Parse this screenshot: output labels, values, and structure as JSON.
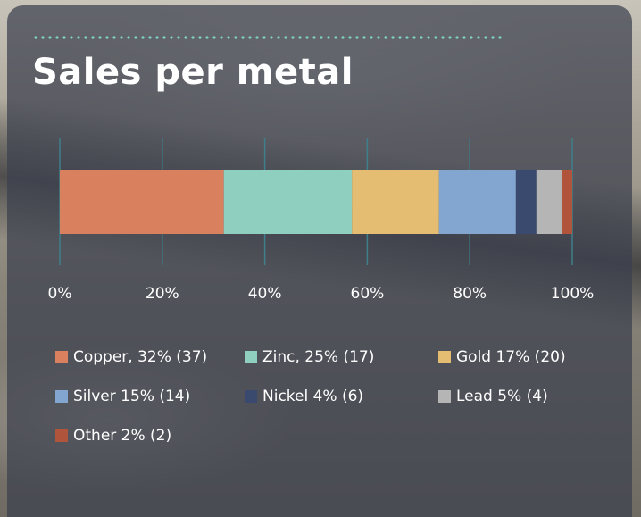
{
  "title": "Sales per metal",
  "accent_color": "#7ed3c6",
  "chart_data": {
    "type": "bar",
    "orientation": "horizontal",
    "stacked": "percent",
    "title": "Sales per metal",
    "xlim": [
      0,
      100
    ],
    "xticks": [
      "0%",
      "20%",
      "40%",
      "60%",
      "80%",
      "100%"
    ],
    "grid": true,
    "legend_position": "bottom",
    "series": [
      {
        "name": "Copper, 32% (37)",
        "value": 32,
        "color": "#d9805f"
      },
      {
        "name": "Zinc, 25% (17)",
        "value": 25,
        "color": "#8fcfbf"
      },
      {
        "name": "Gold 17% (20)",
        "value": 17,
        "color": "#e5bd72"
      },
      {
        "name": "Silver 15% (14)",
        "value": 15,
        "color": "#82a6cf"
      },
      {
        "name": "Nickel 4% (6)",
        "value": 4,
        "color": "#3a4a6e"
      },
      {
        "name": "Lead 5% (4)",
        "value": 5,
        "color": "#b5b5b5"
      },
      {
        "name": "Other 2% (2)",
        "value": 2,
        "color": "#b0553c"
      }
    ]
  }
}
